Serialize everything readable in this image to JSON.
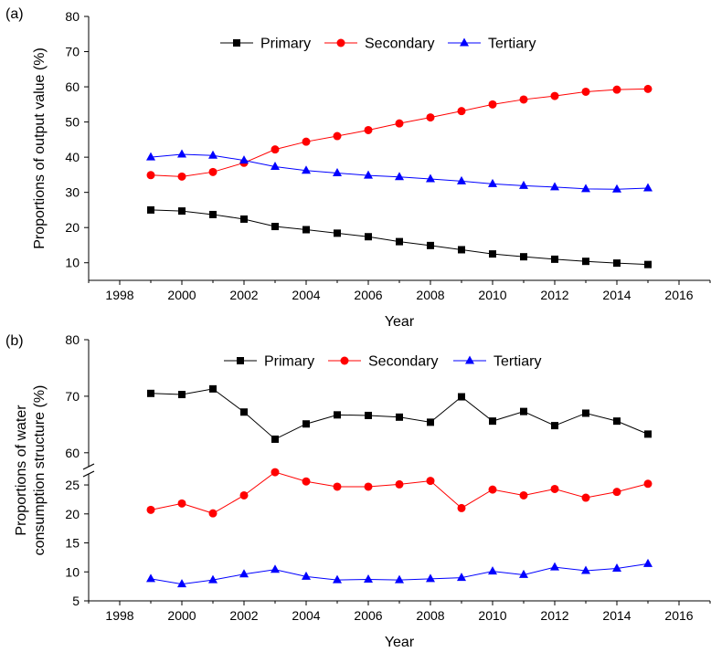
{
  "chart_data": [
    {
      "panel_label": "(a)",
      "type": "line",
      "xlabel": "Year",
      "ylabel": "Proportions of output value (%)",
      "xlim": [
        1997,
        2017
      ],
      "ylim": [
        5,
        80
      ],
      "x_ticks": [
        1998,
        2000,
        2002,
        2004,
        2006,
        2008,
        2010,
        2012,
        2014,
        2016
      ],
      "y_ticks": [
        10,
        20,
        30,
        40,
        50,
        60,
        70,
        80
      ],
      "x": [
        1999,
        2000,
        2001,
        2002,
        2003,
        2004,
        2005,
        2006,
        2007,
        2008,
        2009,
        2010,
        2011,
        2012,
        2013,
        2014,
        2015
      ],
      "legend_position": "top",
      "series": [
        {
          "name": "Primary",
          "color": "#000000",
          "marker": "square",
          "values": [
            25.0,
            24.7,
            23.7,
            22.4,
            20.3,
            19.4,
            18.4,
            17.4,
            16.0,
            14.9,
            13.7,
            12.5,
            11.7,
            11.0,
            10.4,
            9.9,
            9.5
          ]
        },
        {
          "name": "Secondary",
          "color": "#ff0000",
          "marker": "circle",
          "values": [
            34.9,
            34.5,
            35.8,
            38.4,
            42.2,
            44.4,
            46.0,
            47.7,
            49.6,
            51.3,
            53.1,
            55.0,
            56.4,
            57.4,
            58.6,
            59.2,
            59.4
          ]
        },
        {
          "name": "Tertiary",
          "color": "#0000ff",
          "marker": "triangle",
          "values": [
            40.0,
            40.8,
            40.5,
            39.1,
            37.3,
            36.2,
            35.5,
            34.8,
            34.4,
            33.8,
            33.2,
            32.4,
            31.9,
            31.5,
            31.0,
            30.9,
            31.2
          ]
        }
      ]
    },
    {
      "panel_label": "(b)",
      "type": "line",
      "xlabel": "Year",
      "ylabel_lines": [
        "Proportions of water",
        "consumption structure (%)"
      ],
      "xlim": [
        1997,
        2017
      ],
      "y_segments": [
        [
          5,
          28
        ],
        [
          59,
          80
        ]
      ],
      "x_ticks": [
        1998,
        2000,
        2002,
        2004,
        2006,
        2008,
        2010,
        2012,
        2014,
        2016
      ],
      "y_ticks_lower": [
        5,
        10,
        15,
        20,
        25
      ],
      "y_ticks_upper": [
        60,
        70,
        80
      ],
      "x": [
        1999,
        2000,
        2001,
        2002,
        2003,
        2004,
        2005,
        2006,
        2007,
        2008,
        2009,
        2010,
        2011,
        2012,
        2013,
        2014,
        2015
      ],
      "legend_position": "top",
      "series": [
        {
          "name": "Primary",
          "color": "#000000",
          "marker": "square",
          "values": [
            70.5,
            70.3,
            71.3,
            67.2,
            62.4,
            65.1,
            66.7,
            66.6,
            66.3,
            65.4,
            69.9,
            65.6,
            67.3,
            64.8,
            67.0,
            65.6,
            63.3
          ]
        },
        {
          "name": "Secondary",
          "color": "#ff0000",
          "marker": "circle",
          "values": [
            20.7,
            21.8,
            20.1,
            23.2,
            27.2,
            25.6,
            24.7,
            24.7,
            25.1,
            25.7,
            21.0,
            24.2,
            23.2,
            24.3,
            22.8,
            23.8,
            25.2
          ]
        },
        {
          "name": "Tertiary",
          "color": "#0000ff",
          "marker": "triangle",
          "values": [
            8.8,
            7.9,
            8.6,
            9.6,
            10.4,
            9.2,
            8.6,
            8.7,
            8.6,
            8.8,
            9.0,
            10.1,
            9.5,
            10.8,
            10.2,
            10.6,
            11.4
          ]
        }
      ]
    }
  ]
}
